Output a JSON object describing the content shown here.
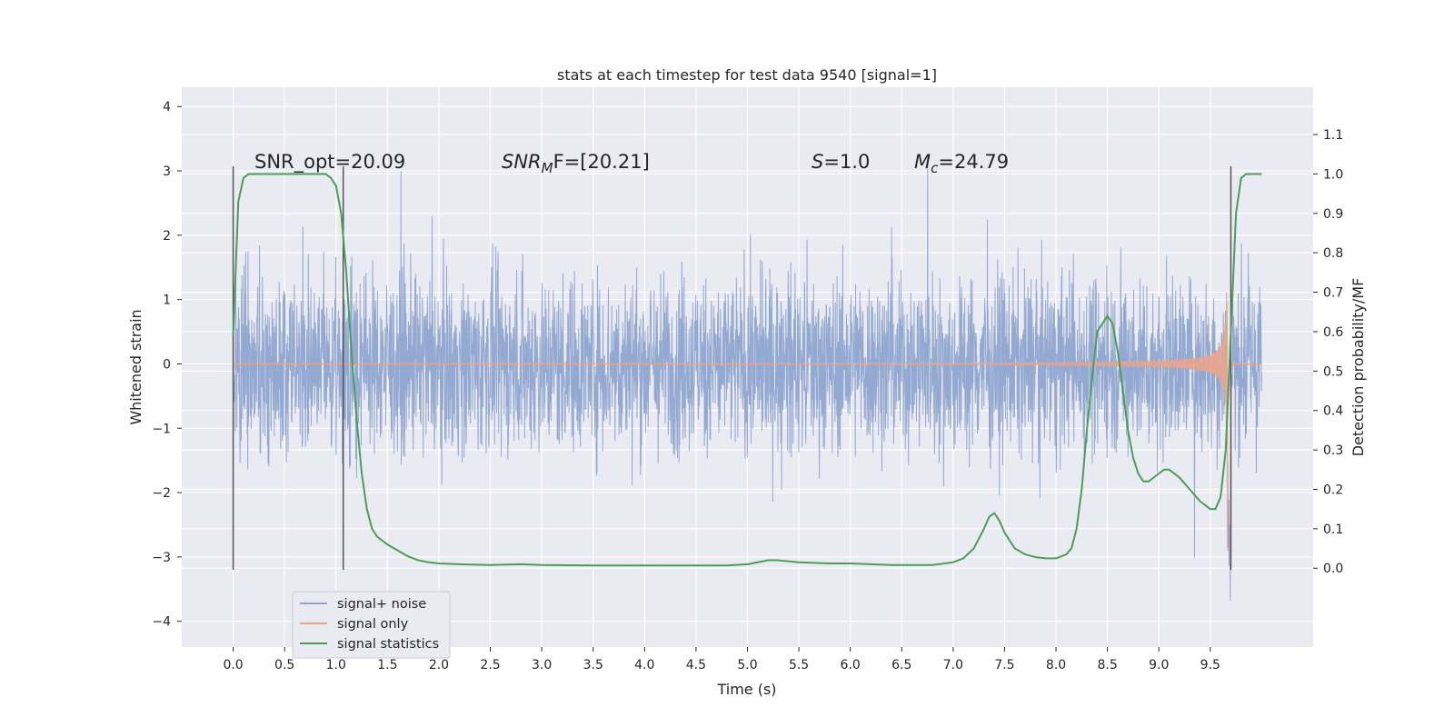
{
  "chart_data": {
    "type": "line",
    "title": "stats at each timestep for test data 9540 [signal=1]",
    "xlabel": "Time (s)",
    "ylabel_left": "Whitened strain",
    "ylabel_right": "Detection probability/MF",
    "xlim": [
      -0.5,
      10.5
    ],
    "ylim_left": [
      -4.4,
      4.3
    ],
    "ylim_right": [
      -0.2,
      1.22
    ],
    "x_ticks": [
      "0.0",
      "0.5",
      "1.0",
      "1.5",
      "2.0",
      "2.5",
      "3.0",
      "3.5",
      "4.0",
      "4.5",
      "5.0",
      "5.5",
      "6.0",
      "6.5",
      "7.0",
      "7.5",
      "8.0",
      "8.5",
      "9.0",
      "9.5"
    ],
    "y_left_ticks": [
      "4",
      "3",
      "2",
      "1",
      "0",
      "−1",
      "−2",
      "−3",
      "−4"
    ],
    "y_right_ticks": [
      "1.1",
      "1.0",
      "0.9",
      "0.8",
      "0.7",
      "0.6",
      "0.5",
      "0.4",
      "0.3",
      "0.2",
      "0.1",
      "0.0"
    ],
    "grid": true,
    "legend_position": "lower-left",
    "annotations": {
      "snr_opt": "SNR_opt=20.09",
      "snr_mf": "SNR",
      "snr_mf_sub": "M",
      "snr_mf_rest": "F=[20.21]",
      "s_var": "S",
      "s_rest": "=1.0",
      "mc_var": "M",
      "mc_sub": "c",
      "mc_rest": "=24.79"
    },
    "vertical_markers": [
      {
        "x": 0.0,
        "y_range": [
          -3.2,
          3.07
        ]
      },
      {
        "x": 1.07,
        "y_range": [
          -3.2,
          3.07
        ]
      },
      {
        "x": 9.7,
        "y_range": [
          -3.2,
          3.07
        ]
      }
    ],
    "series": [
      {
        "name": "signal+ noise",
        "color": "#8fa5cf",
        "axis": "left",
        "t_start": 0.0,
        "t_end": 10.0,
        "envelope": {
          "typical_amplitude": 1.3,
          "max_abs": 3.6
        }
      },
      {
        "name": "signal only",
        "color": "#e9a48c",
        "axis": "left",
        "t_start": 0.0,
        "t_end": 10.0,
        "chirp": {
          "onset": 5.3,
          "merger": 9.67,
          "peak": 3.9
        }
      },
      {
        "name": "signal statistics",
        "color": "#4a9e57",
        "axis": "right",
        "x": [
          0.0,
          0.05,
          0.1,
          0.15,
          0.2,
          0.3,
          0.5,
          0.7,
          0.8,
          0.9,
          0.95,
          1.0,
          1.05,
          1.1,
          1.15,
          1.2,
          1.25,
          1.3,
          1.35,
          1.4,
          1.45,
          1.5,
          1.6,
          1.7,
          1.8,
          1.9,
          2.0,
          2.2,
          2.5,
          2.8,
          3.0,
          3.5,
          4.0,
          4.5,
          4.8,
          5.0,
          5.1,
          5.2,
          5.3,
          5.5,
          5.8,
          6.0,
          6.2,
          6.4,
          6.6,
          6.8,
          7.0,
          7.1,
          7.2,
          7.3,
          7.35,
          7.4,
          7.45,
          7.5,
          7.6,
          7.7,
          7.8,
          7.9,
          8.0,
          8.1,
          8.15,
          8.2,
          8.25,
          8.3,
          8.35,
          8.4,
          8.45,
          8.5,
          8.55,
          8.6,
          8.65,
          8.7,
          8.75,
          8.8,
          8.85,
          8.9,
          9.0,
          9.05,
          9.1,
          9.2,
          9.3,
          9.4,
          9.5,
          9.55,
          9.6,
          9.65,
          9.7,
          9.75,
          9.8,
          9.85,
          9.9,
          10.0
        ],
        "y": [
          0.59,
          0.93,
          0.99,
          1.0,
          1.0,
          1.0,
          1.0,
          1.0,
          1.0,
          1.0,
          0.99,
          0.97,
          0.9,
          0.75,
          0.55,
          0.38,
          0.24,
          0.15,
          0.1,
          0.08,
          0.07,
          0.06,
          0.045,
          0.03,
          0.02,
          0.015,
          0.012,
          0.01,
          0.008,
          0.01,
          0.008,
          0.007,
          0.007,
          0.007,
          0.007,
          0.01,
          0.015,
          0.02,
          0.02,
          0.015,
          0.012,
          0.012,
          0.01,
          0.008,
          0.008,
          0.008,
          0.015,
          0.025,
          0.05,
          0.1,
          0.13,
          0.14,
          0.12,
          0.09,
          0.05,
          0.035,
          0.028,
          0.025,
          0.025,
          0.035,
          0.05,
          0.1,
          0.2,
          0.35,
          0.48,
          0.6,
          0.62,
          0.64,
          0.62,
          0.55,
          0.45,
          0.35,
          0.28,
          0.24,
          0.22,
          0.22,
          0.24,
          0.25,
          0.25,
          0.23,
          0.2,
          0.17,
          0.15,
          0.15,
          0.18,
          0.3,
          0.6,
          0.9,
          0.99,
          1.0,
          1.0,
          1.0
        ]
      }
    ]
  }
}
